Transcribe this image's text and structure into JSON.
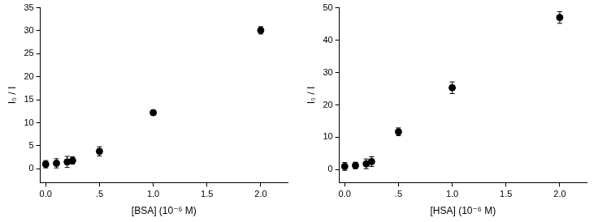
{
  "chart_data": [
    {
      "type": "scatter",
      "x_label": "[BSA] (10⁻⁶ M)",
      "y_label": "I₀ / I",
      "x": [
        0,
        0.1,
        0.2,
        0.25,
        0.5,
        1.0,
        2.0
      ],
      "values": [
        1.0,
        1.2,
        1.5,
        1.8,
        3.8,
        12.2,
        30.1
      ],
      "errors": [
        0.8,
        1.0,
        1.2,
        0.8,
        1.0,
        0.5,
        0.8
      ],
      "color": "#000000",
      "marker": "circle",
      "grid": false,
      "xlim": [
        -0.05,
        2.25
      ],
      "xticks": [
        {
          "value": 0,
          "label": "0.0"
        },
        {
          "value": 0.5,
          "label": ".5"
        },
        {
          "value": 1,
          "label": "1.0"
        },
        {
          "value": 1.5,
          "label": "1.5"
        },
        {
          "value": 2,
          "label": "2.0"
        }
      ],
      "ylim": [
        -3,
        35
      ],
      "yticks": [
        0,
        5,
        10,
        15,
        20,
        25,
        30,
        35
      ]
    },
    {
      "type": "scatter",
      "x_label": "[HSA] (10⁻⁶ M)",
      "y_label": "I₀ / I",
      "x": [
        0,
        0.1,
        0.2,
        0.25,
        0.5,
        1.0,
        2.0
      ],
      "values": [
        1.0,
        1.3,
        1.8,
        2.5,
        11.7,
        25.3,
        47.0
      ],
      "errors": [
        1.2,
        1.0,
        1.5,
        1.5,
        1.2,
        1.8,
        1.8
      ],
      "color": "#000000",
      "marker": "circle",
      "grid": false,
      "xlim": [
        -0.05,
        2.25
      ],
      "xticks": [
        {
          "value": 0,
          "label": "0.0"
        },
        {
          "value": 0.5,
          "label": ".5"
        },
        {
          "value": 1,
          "label": "1.0"
        },
        {
          "value": 1.5,
          "label": "1.5"
        },
        {
          "value": 2,
          "label": "2.0"
        }
      ],
      "ylim": [
        -4,
        50
      ],
      "yticks": [
        0,
        10,
        20,
        30,
        40,
        50
      ]
    }
  ]
}
